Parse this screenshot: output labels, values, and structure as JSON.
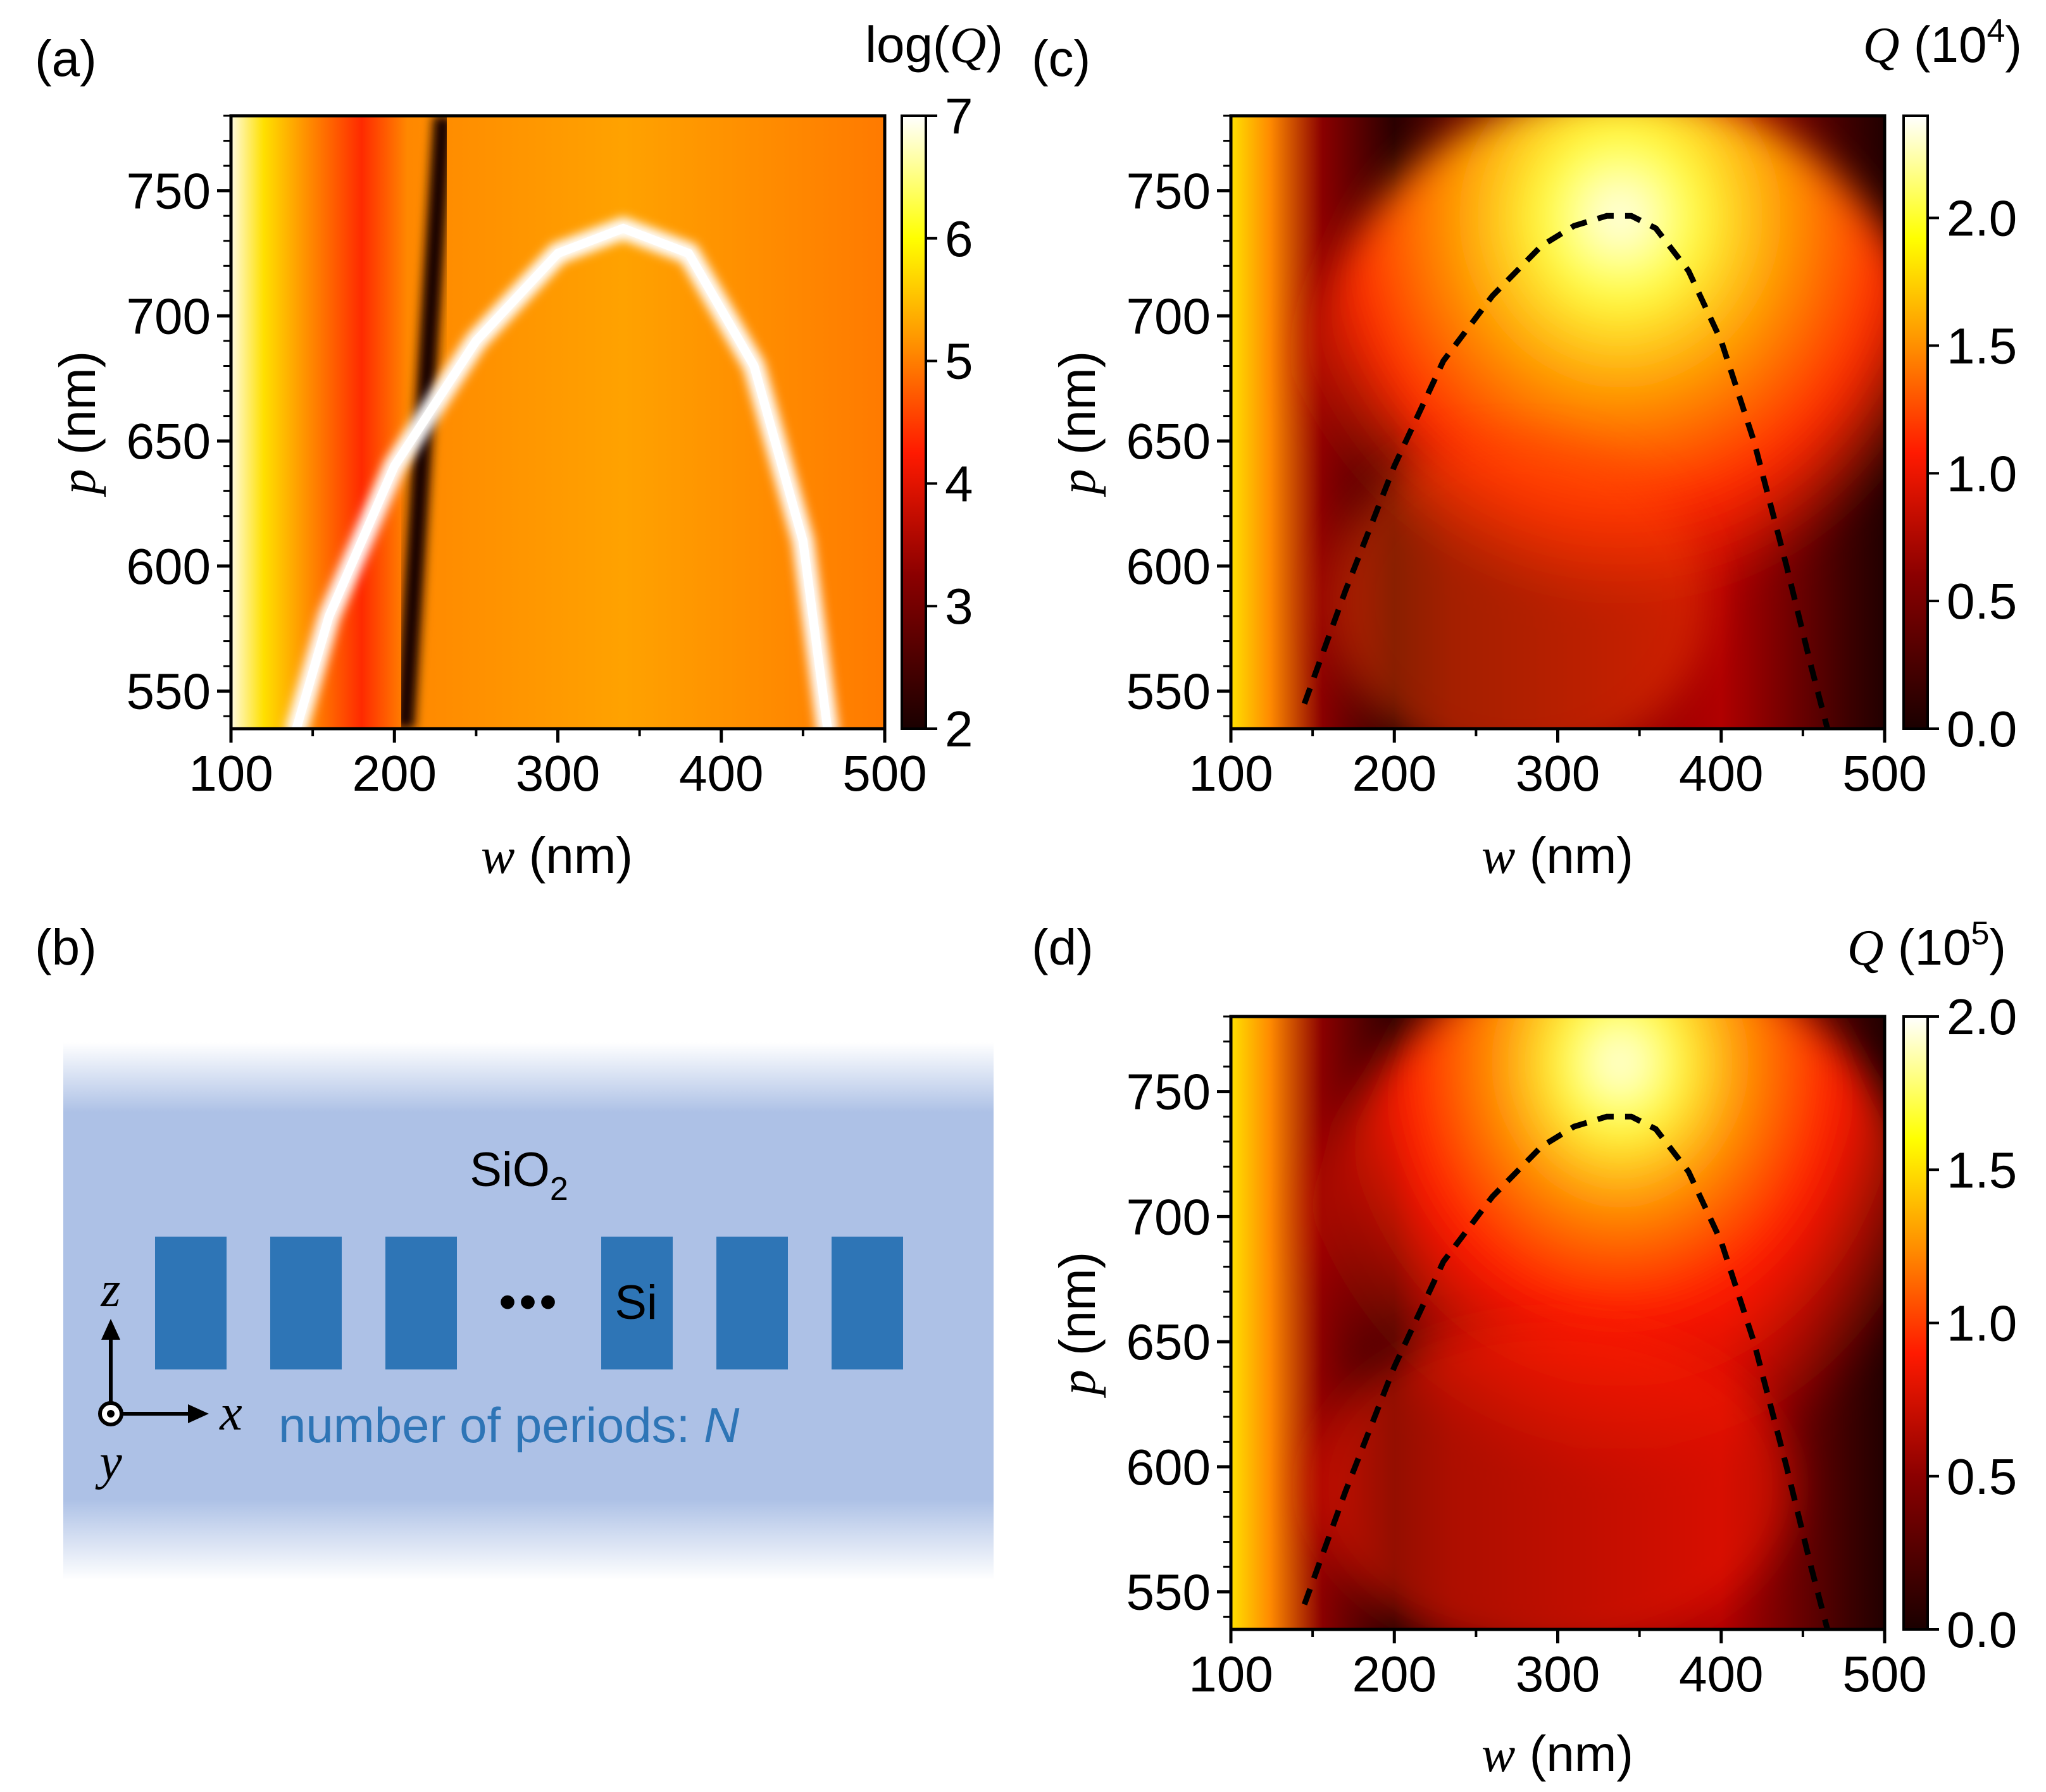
{
  "chart_data": [
    {
      "type": "heatmap",
      "panel_label": "(a)",
      "colorbar_title_prefix": "log(",
      "colorbar_title_var": "Q",
      "colorbar_title_suffix": ")",
      "colorbar_ticks": [
        "7",
        "6",
        "5",
        "4",
        "3",
        "2"
      ],
      "colorbar_range": [
        2,
        7
      ],
      "xlabel_var": "w",
      "xlabel_unit": " (nm)",
      "ylabel_var": "p",
      "ylabel_unit": " (nm)",
      "xticks": [
        "100",
        "200",
        "300",
        "400",
        "500"
      ],
      "yticks": [
        "750",
        "700",
        "650",
        "600",
        "550"
      ],
      "xlim": [
        100,
        500
      ],
      "ylim": [
        535,
        780
      ],
      "description_points": {
        "bic_curve_w": [
          140,
          160,
          200,
          250,
          300,
          340,
          380,
          420,
          450,
          465
        ],
        "bic_curve_p": [
          535,
          580,
          640,
          690,
          725,
          735,
          725,
          680,
          610,
          535
        ]
      }
    },
    {
      "type": "heatmap",
      "panel_label": "(c)",
      "colorbar_title_var": "Q",
      "colorbar_title_base": " (10",
      "colorbar_title_exp": "4",
      "colorbar_title_close": ")",
      "colorbar_ticks": [
        "2.0",
        "1.5",
        "1.0",
        "0.5",
        "0.0"
      ],
      "colorbar_range": [
        0,
        2.4
      ],
      "xlabel_var": "w",
      "xlabel_unit": " (nm)",
      "ylabel_var": "p",
      "ylabel_unit": " (nm)",
      "xticks": [
        "100",
        "200",
        "300",
        "400",
        "500"
      ],
      "yticks": [
        "750",
        "700",
        "650",
        "600",
        "550"
      ],
      "xlim": [
        100,
        500
      ],
      "ylim": [
        535,
        780
      ],
      "dashed_curve": {
        "w": [
          145,
          170,
          200,
          230,
          260,
          290,
          310,
          330,
          345,
          360,
          380,
          400,
          420,
          440,
          455,
          465
        ],
        "p": [
          545,
          590,
          640,
          682,
          708,
          728,
          736,
          740,
          740,
          735,
          718,
          690,
          650,
          600,
          560,
          535
        ]
      }
    },
    {
      "type": "heatmap",
      "panel_label": "(d)",
      "colorbar_title_var": "Q",
      "colorbar_title_base": " (10",
      "colorbar_title_exp": "5",
      "colorbar_title_close": ")",
      "colorbar_ticks": [
        "2.0",
        "1.5",
        "1.0",
        "0.5",
        "0.0"
      ],
      "colorbar_range": [
        0,
        2.0
      ],
      "xlabel_var": "w",
      "xlabel_unit": " (nm)",
      "ylabel_var": "p",
      "ylabel_unit": " (nm)",
      "xticks": [
        "100",
        "200",
        "300",
        "400",
        "500"
      ],
      "yticks": [
        "750",
        "700",
        "650",
        "600",
        "550"
      ],
      "xlim": [
        100,
        500
      ],
      "ylim": [
        535,
        780
      ],
      "dashed_curve": {
        "w": [
          145,
          170,
          200,
          230,
          260,
          290,
          310,
          330,
          345,
          360,
          380,
          400,
          420,
          440,
          455,
          465
        ],
        "p": [
          545,
          590,
          640,
          682,
          708,
          728,
          736,
          740,
          740,
          735,
          718,
          690,
          650,
          600,
          560,
          535
        ]
      }
    }
  ],
  "schematic": {
    "panel_label": "(b)",
    "cladding_label": "SiO",
    "cladding_subscript": "2",
    "ellipsis": "•••",
    "core_label": "Si",
    "axis_z": "z",
    "axis_x": "x",
    "axis_y": "y",
    "periods_text": "number of periods: ",
    "periods_var": "N",
    "colors": {
      "cladding": "#adc1e6",
      "core": "#2e75b6",
      "text": "#2e75b6"
    }
  }
}
